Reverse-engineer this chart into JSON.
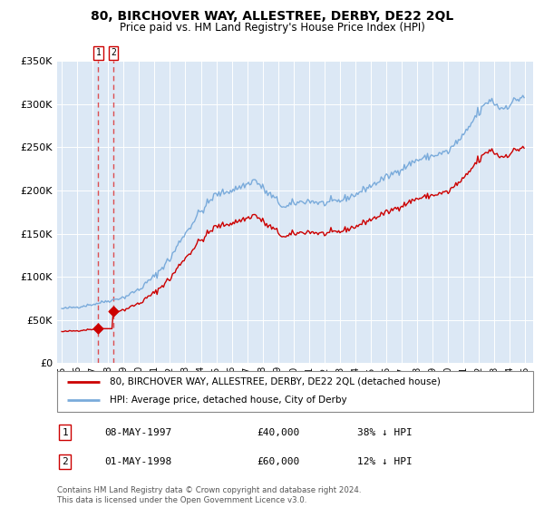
{
  "title": "80, BIRCHOVER WAY, ALLESTREE, DERBY, DE22 2QL",
  "subtitle": "Price paid vs. HM Land Registry's House Price Index (HPI)",
  "legend_line1": "80, BIRCHOVER WAY, ALLESTREE, DERBY, DE22 2QL (detached house)",
  "legend_line2": "HPI: Average price, detached house, City of Derby",
  "footer": "Contains HM Land Registry data © Crown copyright and database right 2024.\nThis data is licensed under the Open Government Licence v3.0.",
  "sale1_label": "1",
  "sale1_date": "08-MAY-1997",
  "sale1_price": "£40,000",
  "sale1_hpi": "38% ↓ HPI",
  "sale2_label": "2",
  "sale2_date": "01-MAY-1998",
  "sale2_price": "£60,000",
  "sale2_hpi": "12% ↓ HPI",
  "sale1_x": 1997.36,
  "sale1_y": 40000,
  "sale2_x": 1998.33,
  "sale2_y": 60000,
  "hpi_color": "#7aabdb",
  "price_color": "#cc0000",
  "dashed_color": "#dd3333",
  "background_plot": "#dce8f5",
  "ylim": [
    0,
    350000
  ],
  "yticks": [
    0,
    50000,
    100000,
    150000,
    200000,
    250000,
    300000,
    350000
  ],
  "ytick_labels": [
    "£0",
    "£50K",
    "£100K",
    "£150K",
    "£200K",
    "£250K",
    "£300K",
    "£350K"
  ],
  "xlim_start": 1994.7,
  "xlim_end": 2025.5,
  "xticks": [
    1995,
    1996,
    1997,
    1998,
    1999,
    2000,
    2001,
    2002,
    2003,
    2004,
    2005,
    2006,
    2007,
    2008,
    2009,
    2010,
    2011,
    2012,
    2013,
    2014,
    2015,
    2016,
    2017,
    2018,
    2019,
    2020,
    2021,
    2022,
    2023,
    2024,
    2025
  ],
  "xtick_labels": [
    "95",
    "96",
    "97",
    "98",
    "99",
    "00",
    "01",
    "02",
    "03",
    "04",
    "05",
    "06",
    "07",
    "08",
    "09",
    "10",
    "11",
    "12",
    "13",
    "14",
    "15",
    "16",
    "17",
    "18",
    "19",
    "20",
    "21",
    "22",
    "23",
    "24",
    "25"
  ]
}
